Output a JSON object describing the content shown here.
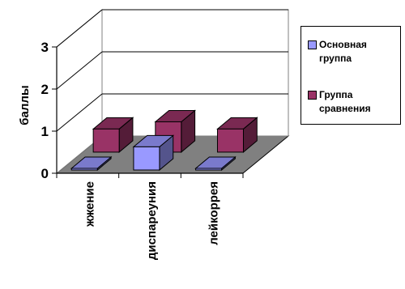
{
  "chart_data": {
    "type": "bar",
    "ylabel": "баллы",
    "xlabel": "",
    "ylim": [
      0,
      3
    ],
    "yticks": [
      "0",
      "1",
      "2",
      "3"
    ],
    "grid": true,
    "legend_position": "right",
    "categories": [
      "жжение",
      "диспареуния",
      "лейкоррея"
    ],
    "series": [
      {
        "name": "Основная группа",
        "color": "#9999ff",
        "values": [
          0,
          0.55,
          0
        ]
      },
      {
        "name": "Группа сравнения",
        "color": "#993366",
        "values": [
          0.55,
          0.72,
          0.55
        ]
      }
    ]
  }
}
